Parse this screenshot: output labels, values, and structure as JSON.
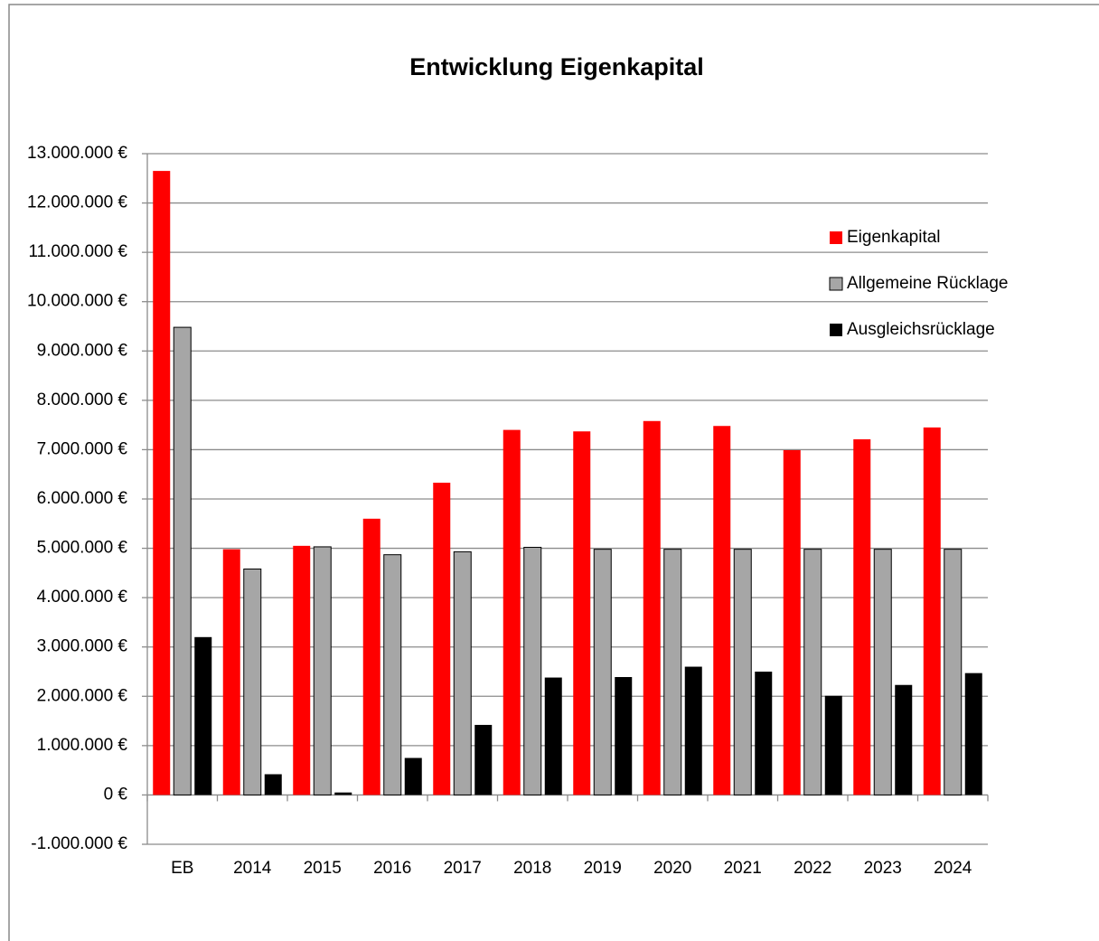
{
  "chart_data": {
    "type": "bar",
    "title": "Entwicklung Eigenkapital",
    "categories": [
      "EB",
      "2014",
      "2015",
      "2016",
      "2017",
      "2018",
      "2019",
      "2020",
      "2021",
      "2022",
      "2023",
      "2024"
    ],
    "series": [
      {
        "name": "Eigenkapital",
        "color": "#ff0000",
        "values": [
          12650000,
          4980000,
          5050000,
          5600000,
          6330000,
          7400000,
          7370000,
          7580000,
          7480000,
          6990000,
          7210000,
          7450000
        ]
      },
      {
        "name": "Allgemeine Rücklage",
        "color": "#a6a6a6",
        "values": [
          9480000,
          4580000,
          5030000,
          4870000,
          4930000,
          5020000,
          4980000,
          4980000,
          4980000,
          4980000,
          4980000,
          4980000
        ]
      },
      {
        "name": "Ausgleichsrücklage",
        "color": "#000000",
        "values": [
          3200000,
          420000,
          50000,
          750000,
          1420000,
          2380000,
          2390000,
          2600000,
          2500000,
          2010000,
          2230000,
          2470000
        ]
      }
    ],
    "ylim": [
      -1000000,
      13000000
    ],
    "yticks": [
      {
        "value": -1000000,
        "label": "-1.000.000 €"
      },
      {
        "value": 0,
        "label": "0 €"
      },
      {
        "value": 1000000,
        "label": "1.000.000 €"
      },
      {
        "value": 2000000,
        "label": "2.000.000 €"
      },
      {
        "value": 3000000,
        "label": "3.000.000 €"
      },
      {
        "value": 4000000,
        "label": "4.000.000 €"
      },
      {
        "value": 5000000,
        "label": "5.000.000 €"
      },
      {
        "value": 6000000,
        "label": "6.000.000 €"
      },
      {
        "value": 7000000,
        "label": "7.000.000 €"
      },
      {
        "value": 8000000,
        "label": "8.000.000 €"
      },
      {
        "value": 9000000,
        "label": "9.000.000 €"
      },
      {
        "value": 10000000,
        "label": "10.000.000 €"
      },
      {
        "value": 11000000,
        "label": "11.000.000 €"
      },
      {
        "value": 12000000,
        "label": "12.000.000 €"
      },
      {
        "value": 13000000,
        "label": "13.000.000 €"
      }
    ],
    "grid": true,
    "legend": "right"
  }
}
